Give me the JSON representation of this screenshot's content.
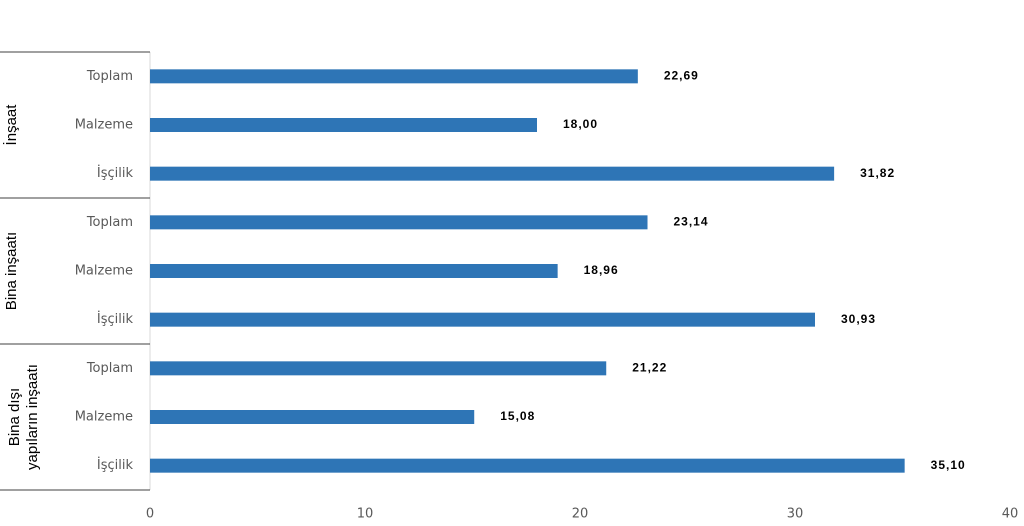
{
  "chart_data": {
    "type": "bar",
    "orientation": "horizontal",
    "color": "#2e75b6",
    "xlim": [
      0,
      40
    ],
    "xticks": [
      0,
      10,
      20,
      30,
      40
    ],
    "groups": [
      {
        "label": [
          "İnşaat"
        ],
        "categories": [
          "Toplam",
          "Malzeme",
          "İşçilik"
        ],
        "values": [
          22.69,
          18.0,
          31.82
        ],
        "value_labels": [
          "22,69",
          "18,00",
          "31,82"
        ]
      },
      {
        "label": [
          "Bina inşaatı"
        ],
        "categories": [
          "Toplam",
          "Malzeme",
          "İşçilik"
        ],
        "values": [
          23.14,
          18.96,
          30.93
        ],
        "value_labels": [
          "23,14",
          "18,96",
          "30,93"
        ]
      },
      {
        "label": [
          "Bina dışı",
          "yapıların inşaatı"
        ],
        "categories": [
          "Toplam",
          "Malzeme",
          "İşçilik"
        ],
        "values": [
          21.22,
          15.08,
          35.1
        ],
        "value_labels": [
          "21,22",
          "15,08",
          "35,10"
        ]
      }
    ]
  }
}
